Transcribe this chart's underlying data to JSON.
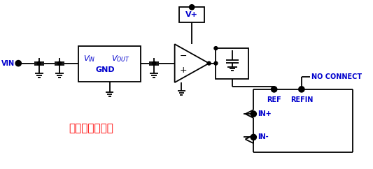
{
  "bg_color": "#ffffff",
  "line_color": "#000000",
  "text_color_blue": "#0000cd",
  "text_color_red": "#ff0000",
  "fig_width": 5.33,
  "fig_height": 2.42,
  "title": "外部基准电压源",
  "vin_label": "VIN",
  "vplus_label": "V+",
  "ref_label": "REF",
  "refin_label": "REFIN",
  "no_connect_label": "NO CONNECT",
  "in_plus_label": "IN+",
  "in_minus_label": "IN-",
  "gnd_label": "GND"
}
